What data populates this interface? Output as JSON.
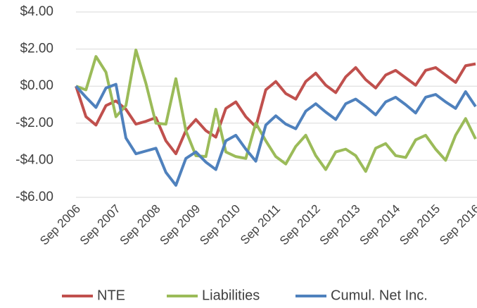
{
  "chart_data": {
    "type": "line",
    "categories": [
      "Sep 2006",
      null,
      null,
      null,
      "Sep 2007",
      null,
      null,
      null,
      "Sep 2008",
      null,
      null,
      null,
      "Sep 2009",
      null,
      null,
      null,
      "Sep 2010",
      null,
      null,
      null,
      "Sep 2011",
      null,
      null,
      null,
      "Sep 2012",
      null,
      null,
      null,
      "Sep 2013",
      null,
      null,
      null,
      "Sep 2014",
      null,
      null,
      null,
      "Sep 2015",
      null,
      null,
      null,
      "Sep 2016"
    ],
    "series": [
      {
        "name": "NTE",
        "color": "#c0504d",
        "values": [
          0,
          -1.65,
          -2.1,
          -1.05,
          -0.8,
          -1.25,
          -2.05,
          -1.9,
          -1.7,
          -2.95,
          -3.65,
          -2.4,
          -1.8,
          -2.4,
          -2.75,
          -1.2,
          -0.85,
          -1.65,
          -2.2,
          -0.2,
          0.25,
          -0.4,
          -0.7,
          0.25,
          0.7,
          0.05,
          -0.35,
          0.5,
          1.0,
          0.35,
          -0.1,
          0.6,
          0.85,
          0.45,
          0.05,
          0.85,
          1.0,
          0.6,
          0.2,
          1.1,
          1.2
        ]
      },
      {
        "name": "Liabilities",
        "color": "#9bbb59",
        "values": [
          0,
          -0.2,
          1.6,
          0.75,
          -1.65,
          -1.05,
          1.95,
          0.15,
          -2.0,
          -2.05,
          0.4,
          -2.4,
          -3.75,
          -3.8,
          -1.25,
          -3.55,
          -3.8,
          -3.9,
          -2.0,
          -2.95,
          -3.8,
          -4.2,
          -3.25,
          -2.65,
          -3.75,
          -4.5,
          -3.55,
          -3.4,
          -3.75,
          -4.6,
          -3.35,
          -3.1,
          -3.75,
          -3.85,
          -2.9,
          -2.65,
          -3.4,
          -4.0,
          -2.65,
          -1.75,
          -2.85
        ]
      },
      {
        "name": "Cumul. Net Inc.",
        "color": "#4f81bd",
        "values": [
          0,
          -0.6,
          -1.15,
          -0.1,
          0.1,
          -2.8,
          -3.65,
          -3.5,
          -3.35,
          -4.65,
          -5.35,
          -3.9,
          -3.55,
          -4.1,
          -4.5,
          -2.95,
          -2.65,
          -3.4,
          -4.05,
          -2.1,
          -1.6,
          -2.05,
          -2.3,
          -1.35,
          -0.95,
          -1.4,
          -1.8,
          -0.95,
          -0.7,
          -1.1,
          -1.55,
          -0.85,
          -0.6,
          -1.0,
          -1.45,
          -0.6,
          -0.45,
          -0.85,
          -1.2,
          -0.3,
          -1.1
        ]
      }
    ],
    "ylim": [
      -6,
      4
    ],
    "yticks": [
      {
        "value": -6,
        "label": "-$6.00"
      },
      {
        "value": -4,
        "label": "-$4.00"
      },
      {
        "value": -2,
        "label": "-$2.00"
      },
      {
        "value": 0,
        "label": "$0.00"
      },
      {
        "value": 2,
        "label": "$2.00"
      },
      {
        "value": 4,
        "label": "$4.00"
      }
    ],
    "grid": true,
    "legend": "bottom"
  }
}
